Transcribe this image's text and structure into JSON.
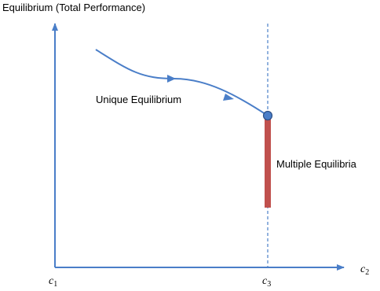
{
  "labels": {
    "y_axis": "Equilibrium (Total Performance)",
    "unique": "Unique Equilibrium",
    "multiple": "Multiple Equilibria"
  },
  "axis_ticks": {
    "origin": {
      "base": "c",
      "sub": "1"
    },
    "critical": {
      "base": "c",
      "sub": "3"
    },
    "x_end": {
      "base": "c",
      "sub": "2"
    }
  },
  "colors": {
    "axis": "#4a7ec8",
    "curve": "#4a7ec8",
    "point_fill": "#4a7ec8",
    "point_stroke": "#2c4f85",
    "bar": "#c0504d"
  }
}
